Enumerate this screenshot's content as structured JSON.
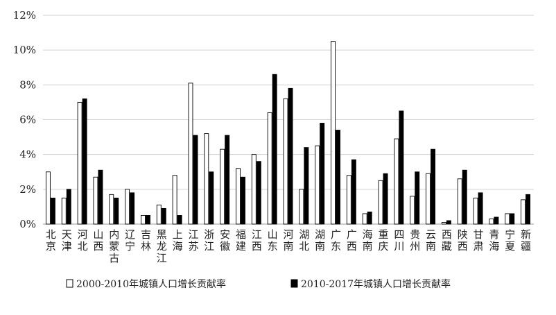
{
  "chart_data": {
    "type": "bar",
    "title": "",
    "xlabel": "",
    "ylabel": "",
    "ylim": [
      0,
      12
    ],
    "y_ticks": [
      "0%",
      "2%",
      "4%",
      "6%",
      "8%",
      "10%",
      "12%"
    ],
    "y_unit": "%",
    "grid": "horizontal",
    "legend_position": "bottom",
    "categories": [
      "北京",
      "天津",
      "河北",
      "山西",
      "内蒙古",
      "辽宁",
      "吉林",
      "黑龙江",
      "上海",
      "江苏",
      "浙江",
      "安徽",
      "福建",
      "江西",
      "山东",
      "河南",
      "湖北",
      "湖南",
      "广东",
      "广西",
      "海南",
      "重庆",
      "四川",
      "贵州",
      "云南",
      "西藏",
      "陕西",
      "甘肃",
      "青海",
      "宁夏",
      "新疆"
    ],
    "series": [
      {
        "name": "2000-2010年城镇人口增长贡献率",
        "color": "#ffffff",
        "values": [
          3.0,
          1.5,
          7.0,
          2.7,
          1.7,
          2.0,
          0.5,
          1.1,
          2.8,
          8.1,
          5.2,
          4.3,
          3.2,
          4.0,
          6.4,
          7.2,
          2.0,
          4.5,
          10.5,
          2.8,
          0.6,
          2.5,
          4.9,
          1.6,
          2.9,
          0.1,
          2.6,
          1.5,
          0.3,
          0.6,
          1.4
        ]
      },
      {
        "name": "2010-2017年城镇人口增长贡献率",
        "color": "#000000",
        "values": [
          1.5,
          2.0,
          7.2,
          3.1,
          1.5,
          1.8,
          0.5,
          0.9,
          0.5,
          5.1,
          3.0,
          5.1,
          2.7,
          3.6,
          8.6,
          7.8,
          4.4,
          5.8,
          5.4,
          3.7,
          0.7,
          2.9,
          6.5,
          3.0,
          4.3,
          0.2,
          3.1,
          1.8,
          0.4,
          0.6,
          1.7
        ]
      }
    ]
  }
}
